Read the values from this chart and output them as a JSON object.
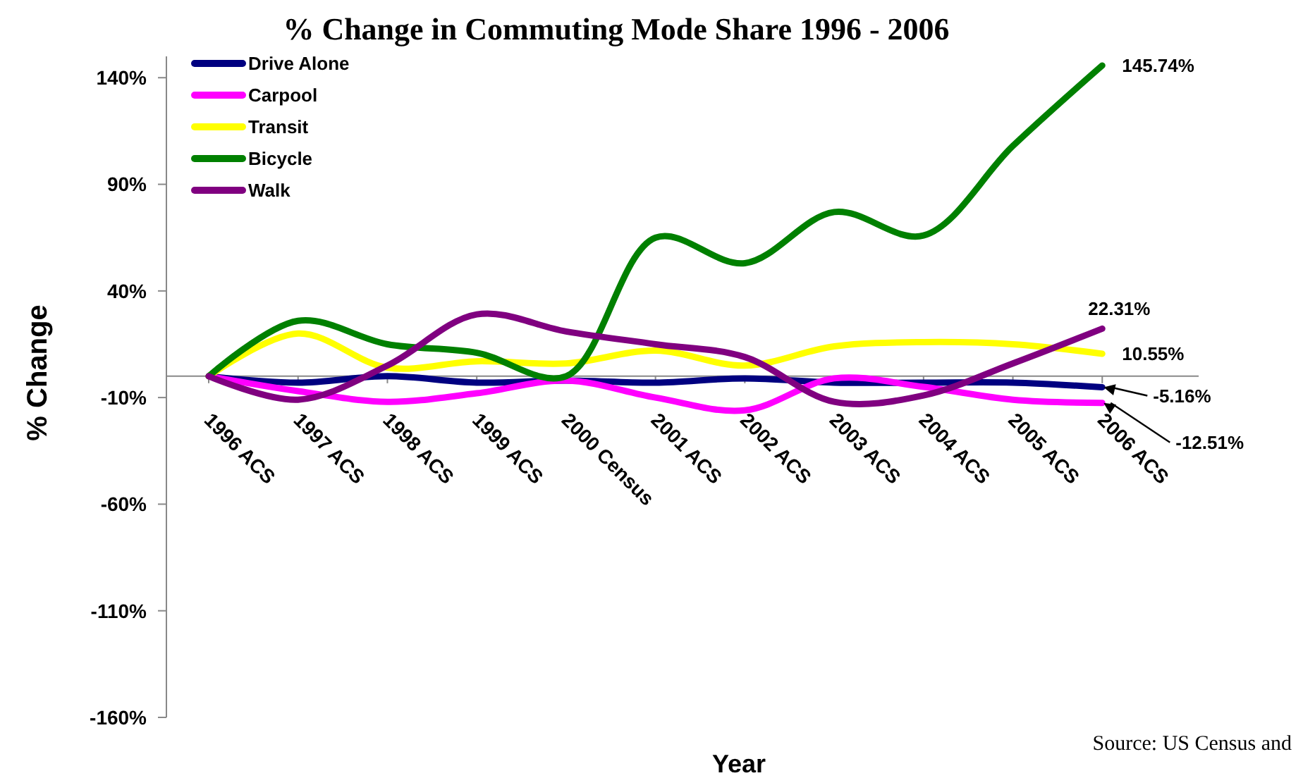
{
  "chart_data": {
    "type": "line",
    "title": "% Change in Commuting Mode Share 1996 - 2006",
    "xlabel": "Year",
    "ylabel": "% Change",
    "categories": [
      "1996 ACS",
      "1997 ACS",
      "1998 ACS",
      "1999 ACS",
      "2000 Census",
      "2001 ACS",
      "2002 ACS",
      "2003 ACS",
      "2004 ACS",
      "2005 ACS",
      "2006 ACS"
    ],
    "series": [
      {
        "name": "Drive Alone",
        "color": "#000080",
        "values": [
          0,
          -3,
          0,
          -3,
          -2,
          -3,
          -1,
          -3,
          -3,
          -3,
          -5.16
        ],
        "value_labels": [
          null,
          null,
          null,
          null,
          null,
          null,
          null,
          null,
          null,
          null,
          "-5.16%"
        ]
      },
      {
        "name": "Carpool",
        "color": "#ff00ff",
        "values": [
          0,
          -7,
          -12,
          -8,
          -2,
          -10,
          -16,
          -1,
          -5,
          -11,
          -12.51
        ],
        "value_labels": [
          null,
          null,
          null,
          null,
          null,
          null,
          null,
          null,
          null,
          null,
          "-12.51%"
        ]
      },
      {
        "name": "Transit",
        "color": "#ffff00",
        "values": [
          0,
          20,
          4,
          7,
          6,
          12,
          5,
          14,
          16,
          15,
          10.55
        ],
        "value_labels": [
          null,
          null,
          null,
          null,
          null,
          null,
          null,
          null,
          null,
          null,
          "10.55%"
        ]
      },
      {
        "name": "Bicycle",
        "color": "#008000",
        "values": [
          0,
          26,
          15,
          11,
          0,
          65,
          53,
          77,
          66,
          108,
          145.74
        ],
        "value_labels": [
          null,
          null,
          null,
          null,
          null,
          null,
          null,
          null,
          null,
          null,
          "145.74%"
        ]
      },
      {
        "name": "Walk",
        "color": "#800080",
        "values": [
          0,
          -11,
          5,
          29,
          21,
          15,
          9,
          -12,
          -9,
          6,
          22.31
        ],
        "value_labels": [
          null,
          null,
          null,
          null,
          null,
          null,
          null,
          null,
          null,
          null,
          "22.31%"
        ]
      }
    ],
    "ylim": [
      -160,
      150
    ],
    "yticks": [
      {
        "value": -160,
        "label": "-160%"
      },
      {
        "value": -110,
        "label": "-110%"
      },
      {
        "value": -60,
        "label": "-60%"
      },
      {
        "value": -10,
        "label": "-10%"
      },
      {
        "value": 40,
        "label": "40%"
      },
      {
        "value": 90,
        "label": "90%"
      },
      {
        "value": 140,
        "label": "140%"
      }
    ],
    "grid": false,
    "legend": "top left",
    "marker": "none",
    "line_style": "solid",
    "annotations": [
      "Source: US Census and"
    ]
  }
}
